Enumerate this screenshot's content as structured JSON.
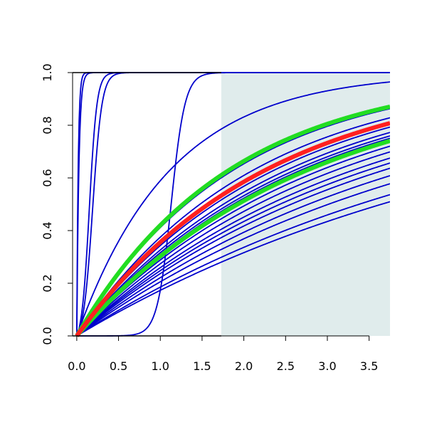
{
  "chart_data": {
    "type": "line",
    "title": "",
    "xlabel": "",
    "ylabel": "",
    "xlim": [
      -0.05,
      3.75
    ],
    "ylim": [
      0,
      1
    ],
    "x_ticks": [
      0.0,
      0.5,
      1.0,
      1.5,
      2.0,
      2.5,
      3.0,
      3.5
    ],
    "x_tick_labels": [
      "0.0",
      "0.5",
      "1.0",
      "1.5",
      "2.0",
      "2.5",
      "3.0",
      "3.5"
    ],
    "y_ticks": [
      0.0,
      0.2,
      0.4,
      0.6,
      0.8,
      1.0
    ],
    "y_tick_labels": [
      "0.0",
      "0.2",
      "0.4",
      "0.6",
      "0.8",
      "1.0"
    ],
    "grid": false,
    "legend": "none",
    "shaded_region": {
      "x_from": 1.73,
      "x_to": 3.75,
      "color": "#e0ecec"
    },
    "colors": {
      "curves": "#0000cc",
      "red_curve": "#ff2020",
      "green_curves": "#22dd22",
      "shade": "#e0ecec"
    },
    "series": [
      {
        "color": "blue",
        "kind": "exp",
        "rate": 40
      },
      {
        "color": "blue",
        "kind": "exp",
        "rate": 60
      },
      {
        "color": "blue",
        "kind": "logistic",
        "x0": 0.15,
        "k": 22
      },
      {
        "color": "blue",
        "kind": "logistic",
        "x0": 0.19,
        "k": 18
      },
      {
        "color": "blue",
        "kind": "logistic",
        "x0": 1.13,
        "k": 12
      },
      {
        "color": "blue",
        "kind": "exp",
        "rate": 0.89
      },
      {
        "color": "blue",
        "kind": "exp",
        "rate": 0.53
      },
      {
        "color": "blue",
        "kind": "exp",
        "rate": 0.47
      },
      {
        "color": "blue",
        "kind": "exp",
        "rate": 0.42
      },
      {
        "color": "blue",
        "kind": "exp",
        "rate": 0.395
      },
      {
        "color": "blue",
        "kind": "exp",
        "rate": 0.38
      },
      {
        "color": "blue",
        "kind": "exp",
        "rate": 0.37
      },
      {
        "color": "blue",
        "kind": "exp",
        "rate": 0.355
      },
      {
        "color": "blue",
        "kind": "exp",
        "rate": 0.34
      },
      {
        "color": "blue",
        "kind": "exp",
        "rate": 0.32
      },
      {
        "color": "blue",
        "kind": "exp",
        "rate": 0.3
      },
      {
        "color": "blue",
        "kind": "exp",
        "rate": 0.285
      },
      {
        "color": "blue",
        "kind": "exp",
        "rate": 0.27
      },
      {
        "color": "blue",
        "kind": "exp",
        "rate": 0.25
      },
      {
        "color": "blue",
        "kind": "exp",
        "rate": 0.23
      },
      {
        "color": "blue",
        "kind": "exp",
        "rate": 0.205
      },
      {
        "color": "blue",
        "kind": "exp",
        "rate": 0.19
      },
      {
        "color": "green",
        "kind": "exp",
        "rate": 0.545,
        "thick": true
      },
      {
        "color": "green",
        "kind": "exp",
        "rate": 0.36,
        "thick": true
      },
      {
        "color": "red",
        "kind": "exp",
        "rate": 0.44,
        "thick": true
      }
    ]
  }
}
